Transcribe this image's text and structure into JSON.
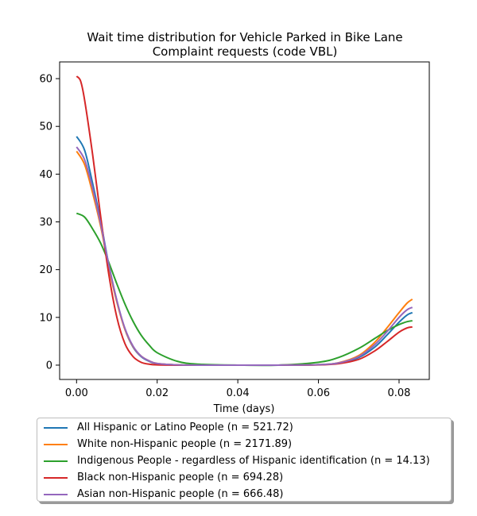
{
  "chart_data": {
    "type": "line",
    "title": [
      "Wait time distribution  for Vehicle Parked in Bike Lane",
      "Complaint  requests (code VBL)"
    ],
    "xlabel": "Time (days)",
    "ylabel": "",
    "xlim": [
      -0.0042,
      0.0875
    ],
    "ylim": [
      -3.0,
      63.5
    ],
    "xticks": [
      0.0,
      0.02,
      0.04,
      0.06,
      0.08
    ],
    "xtick_labels": [
      "0.00",
      "0.02",
      "0.04",
      "0.06",
      "0.08"
    ],
    "yticks": [
      0,
      10,
      20,
      30,
      40,
      50,
      60
    ],
    "ytick_labels": [
      "0",
      "10",
      "20",
      "30",
      "40",
      "50",
      "60"
    ],
    "grid": false,
    "legend_position": "below",
    "series": [
      {
        "name": "All Hispanic or Latino People (n = 521.72)",
        "color": "#1f77b4",
        "x": [
          0,
          0.002,
          0.004,
          0.006,
          0.008,
          0.01,
          0.012,
          0.014,
          0.016,
          0.018,
          0.02,
          0.025,
          0.03,
          0.04,
          0.05,
          0.06,
          0.065,
          0.07,
          0.074,
          0.077,
          0.08,
          0.082,
          0.0833
        ],
        "values": [
          47.9,
          45.0,
          38.0,
          30.0,
          21.0,
          13.5,
          7.5,
          3.8,
          1.8,
          0.8,
          0.3,
          0.05,
          0.0,
          0.0,
          0.0,
          0.1,
          0.4,
          1.6,
          3.8,
          6.3,
          9.0,
          10.5,
          11.0
        ]
      },
      {
        "name": "White non-Hispanic people (n = 2171.89)",
        "color": "#ff7f0e",
        "x": [
          0,
          0.002,
          0.004,
          0.006,
          0.008,
          0.01,
          0.012,
          0.014,
          0.016,
          0.018,
          0.02,
          0.025,
          0.03,
          0.04,
          0.05,
          0.06,
          0.065,
          0.07,
          0.074,
          0.077,
          0.08,
          0.082,
          0.0833
        ],
        "values": [
          44.8,
          42.0,
          36.0,
          29.0,
          20.5,
          13.2,
          7.5,
          3.9,
          1.9,
          0.9,
          0.35,
          0.05,
          0.0,
          0.0,
          0.0,
          0.1,
          0.5,
          2.0,
          4.8,
          7.8,
          11.0,
          13.0,
          13.8
        ]
      },
      {
        "name": "Indigenous People - regardless of Hispanic identification (n = 14.13)",
        "color": "#2ca02c",
        "x": [
          0,
          0.002,
          0.004,
          0.006,
          0.008,
          0.01,
          0.012,
          0.014,
          0.016,
          0.018,
          0.02,
          0.025,
          0.03,
          0.04,
          0.05,
          0.06,
          0.065,
          0.07,
          0.074,
          0.077,
          0.08,
          0.082,
          0.0833
        ],
        "values": [
          31.8,
          31.0,
          28.5,
          25.5,
          21.5,
          17.0,
          12.8,
          9.2,
          6.3,
          4.2,
          2.6,
          0.8,
          0.2,
          0.0,
          0.0,
          0.6,
          1.6,
          3.5,
          5.6,
          7.2,
          8.5,
          9.1,
          9.3
        ]
      },
      {
        "name": "Black non-Hispanic people (n = 694.28)",
        "color": "#d62728",
        "x": [
          0,
          0.001,
          0.002,
          0.004,
          0.006,
          0.008,
          0.01,
          0.012,
          0.014,
          0.016,
          0.018,
          0.02,
          0.025,
          0.03,
          0.04,
          0.05,
          0.06,
          0.065,
          0.07,
          0.074,
          0.077,
          0.08,
          0.082,
          0.0833
        ],
        "values": [
          60.5,
          59.5,
          55.5,
          44.0,
          31.0,
          19.0,
          10.0,
          4.5,
          1.8,
          0.6,
          0.2,
          0.05,
          0.0,
          0.0,
          0.0,
          0.0,
          0.05,
          0.3,
          1.2,
          3.0,
          4.9,
          6.9,
          7.8,
          8.0
        ]
      },
      {
        "name": "Asian non-Hispanic people (n = 666.48)",
        "color": "#9467bd",
        "x": [
          0,
          0.002,
          0.004,
          0.006,
          0.008,
          0.01,
          0.012,
          0.014,
          0.016,
          0.018,
          0.02,
          0.025,
          0.03,
          0.04,
          0.05,
          0.06,
          0.065,
          0.07,
          0.074,
          0.077,
          0.08,
          0.082,
          0.0833
        ],
        "values": [
          45.7,
          43.0,
          37.0,
          29.5,
          21.0,
          13.5,
          7.7,
          4.0,
          1.9,
          0.9,
          0.35,
          0.05,
          0.0,
          0.0,
          0.0,
          0.1,
          0.45,
          1.8,
          4.3,
          7.0,
          10.0,
          11.6,
          12.1
        ]
      }
    ]
  }
}
